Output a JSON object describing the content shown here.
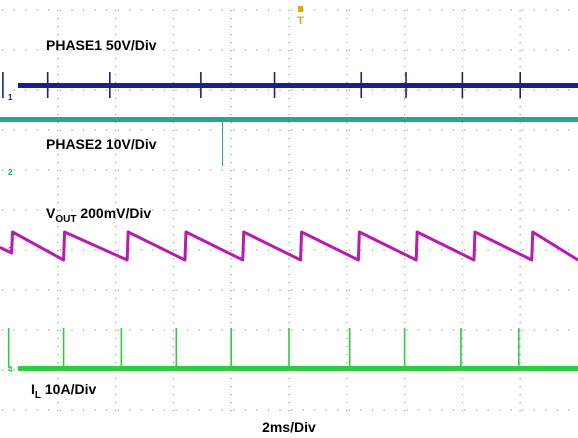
{
  "chart_data": {
    "type": "line",
    "title": "",
    "xlabel": "2ms/Div",
    "time_per_div_ms": 2,
    "grid": true,
    "trigger_marker": "T",
    "series": [
      {
        "name": "PHASE1 50V/Div",
        "channel": "1",
        "color": "#1a237e",
        "label_main": "PHASE1 50V/Div",
        "pulse_times_ms": [
          0.1,
          1.65,
          3.8,
          6.95,
          9.5,
          12.5,
          14.05,
          16.0,
          18.0
        ]
      },
      {
        "name": "PHASE2 10V/Div",
        "channel": "2",
        "color": "#26a69a",
        "label_main": "PHASE2 10V/Div",
        "pulse_times_ms": [
          7.7
        ]
      },
      {
        "name": "VOUT 200mV/Div",
        "channel": "3",
        "color": "#b71cb0",
        "label_main": "V",
        "label_sub": "OUT",
        "label_rest": " 200mV/Div",
        "ramp_reset_times_ms": [
          0.4,
          2.2,
          4.4,
          6.4,
          8.4,
          10.4,
          12.4,
          14.4,
          16.4,
          18.4
        ],
        "ramp_amplitude_div": 0.7
      },
      {
        "name": "IL 10A/Div",
        "channel": "4",
        "color": "#2ecc40",
        "label_main": "I",
        "label_sub": "L",
        "label_rest": " 10A/Div",
        "pulse_times_ms": [
          0.3,
          2.2,
          4.2,
          6.1,
          8.0,
          10.0,
          12.1,
          14.0,
          15.95,
          17.95
        ]
      }
    ]
  }
}
